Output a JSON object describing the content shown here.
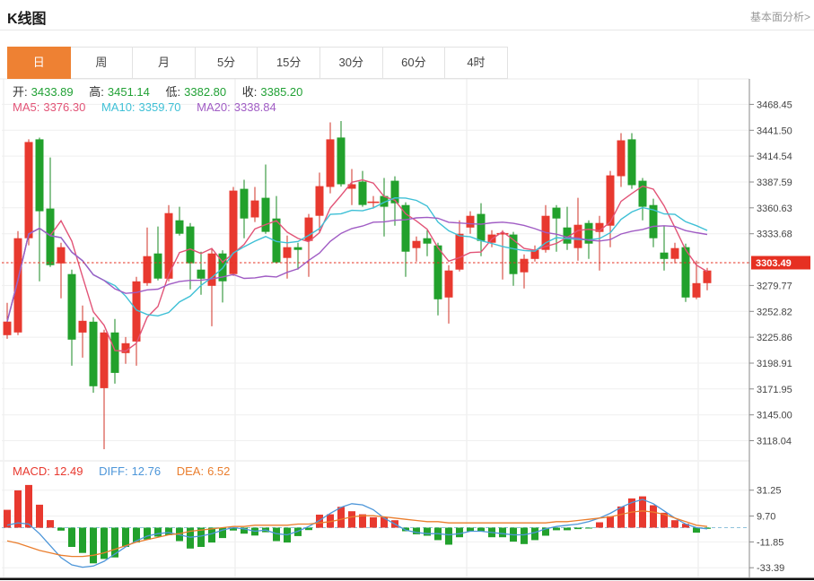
{
  "header": {
    "title": "K线图",
    "link": "基本面分析>"
  },
  "tabs": {
    "items": [
      "日",
      "周",
      "月",
      "5分",
      "15分",
      "30分",
      "60分",
      "4时"
    ],
    "active_index": 0
  },
  "ohlc": {
    "open_label": "开:",
    "open": "3433.89",
    "high_label": "高:",
    "high": "3451.14",
    "low_label": "低:",
    "low": "3382.80",
    "close_label": "收:",
    "close": "3385.20"
  },
  "ma": {
    "ma5_label": "MA5:",
    "ma5": "3376.30",
    "ma10_label": "MA10:",
    "ma10": "3359.70",
    "ma20_label": "MA20:",
    "ma20": "3338.84"
  },
  "macd_info": {
    "macd_label": "MACD:",
    "macd": "12.49",
    "diff_label": "DIFF:",
    "diff": "12.76",
    "dea_label": "DEA:",
    "dea": "6.52"
  },
  "price_axis": {
    "current_price": "3303.49"
  },
  "colors": {
    "up": "#e8392f",
    "up_wick": "#d03126",
    "down": "#22a12c",
    "down_wick": "#178a20",
    "ma5": "#e25477",
    "ma10": "#3fc0d6",
    "ma20": "#a05cc4",
    "diff": "#4d96d9",
    "dea": "#ea7e2e",
    "ohlc_value": "#21a135",
    "tab_active": "#ee8133",
    "badge": "#e63022",
    "grid": "#efefef",
    "vgrid": "#e9e9e9",
    "axis_line": "#888",
    "tick_text": "#444",
    "zero_dash": "#8fc2dc",
    "bottom_bar": "#111"
  },
  "chart_data": [
    {
      "type": "candlestick",
      "title": "K线图 日K",
      "ylim": [
        3098,
        3495
      ],
      "yticks": [
        3468.45,
        3441.5,
        3414.54,
        3387.59,
        3360.63,
        3333.68,
        3279.77,
        3252.82,
        3225.86,
        3198.91,
        3171.95,
        3145.0,
        3118.04
      ],
      "current_price": 3303.49,
      "ma_overlays": [
        {
          "name": "MA5",
          "window": 5,
          "color_key": "ma5"
        },
        {
          "name": "MA10",
          "window": 10,
          "color_key": "ma10"
        },
        {
          "name": "MA20",
          "window": 20,
          "color_key": "ma20"
        }
      ],
      "candles_format": [
        "open",
        "high",
        "low",
        "close"
      ],
      "candles": [
        [
          3228.0,
          3261.7,
          3224.2,
          3242.1
        ],
        [
          3230.8,
          3336.5,
          3228.0,
          3329.0
        ],
        [
          3329.0,
          3432.0,
          3321.6,
          3429.2
        ],
        [
          3432.0,
          3433.8,
          3284.1,
          3357.1
        ],
        [
          3359.9,
          3413.2,
          3299.1,
          3301.0
        ],
        [
          3302.8,
          3324.3,
          3266.3,
          3319.7
        ],
        [
          3291.6,
          3296.3,
          3196.2,
          3223.3
        ],
        [
          3230.8,
          3258.9,
          3204.6,
          3243.0
        ],
        [
          3242.0,
          3246.7,
          3168.1,
          3174.7
        ],
        [
          3172.8,
          3233.6,
          3109.2,
          3230.8
        ],
        [
          3230.8,
          3244.8,
          3177.5,
          3188.7
        ],
        [
          3209.3,
          3226.1,
          3198.1,
          3219.6
        ],
        [
          3221.4,
          3288.8,
          3196.2,
          3284.1
        ],
        [
          3282.2,
          3340.2,
          3279.4,
          3310.3
        ],
        [
          3313.1,
          3341.2,
          3285.0,
          3286.9
        ],
        [
          3286.9,
          3363.6,
          3284.1,
          3355.2
        ],
        [
          3347.7,
          3361.8,
          3331.8,
          3333.7
        ],
        [
          3341.2,
          3344.9,
          3275.7,
          3302.8
        ],
        [
          3296.3,
          3315.0,
          3270.1,
          3286.9
        ],
        [
          3279.4,
          3317.8,
          3237.3,
          3313.1
        ],
        [
          3313.1,
          3316.5,
          3262.0,
          3284.1
        ],
        [
          3291.6,
          3382.4,
          3289.7,
          3378.6
        ],
        [
          3380.5,
          3389.9,
          3329.0,
          3349.6
        ],
        [
          3350.6,
          3382.4,
          3345.9,
          3368.3
        ],
        [
          3371.1,
          3405.8,
          3333.7,
          3335.6
        ],
        [
          3349.6,
          3373.0,
          3302.8,
          3303.8
        ],
        [
          3308.5,
          3331.8,
          3286.9,
          3319.7
        ],
        [
          3319.7,
          3324.3,
          3296.3,
          3316.9
        ],
        [
          3326.2,
          3354.3,
          3288.8,
          3350.6
        ],
        [
          3352.4,
          3397.4,
          3335.6,
          3383.3
        ],
        [
          3382.4,
          3449.7,
          3375.8,
          3432.0
        ],
        [
          3433.89,
          3451.14,
          3382.8,
          3385.2
        ],
        [
          3380.5,
          3401.1,
          3363.6,
          3385.2
        ],
        [
          3388.0,
          3399.2,
          3361.8,
          3363.6
        ],
        [
          3366.5,
          3373.0,
          3359.9,
          3366.5
        ],
        [
          3373.0,
          3391.8,
          3330.9,
          3361.8
        ],
        [
          3388.9,
          3393.6,
          3342.1,
          3365.5
        ],
        [
          3363.6,
          3366.5,
          3288.8,
          3315.0
        ],
        [
          3318.7,
          3330.9,
          3304.7,
          3326.2
        ],
        [
          3329.0,
          3337.4,
          3310.3,
          3323.4
        ],
        [
          3321.5,
          3324.3,
          3248.6,
          3265.4
        ],
        [
          3267.3,
          3301.0,
          3240.1,
          3295.4
        ],
        [
          3296.3,
          3347.7,
          3294.4,
          3333.7
        ],
        [
          3340.2,
          3357.1,
          3333.7,
          3352.4
        ],
        [
          3354.3,
          3365.5,
          3310.3,
          3326.2
        ],
        [
          3324.3,
          3337.4,
          3319.7,
          3332.8
        ],
        [
          3333.7,
          3337.4,
          3286.0,
          3333.7
        ],
        [
          3332.8,
          3335.6,
          3279.4,
          3291.6
        ],
        [
          3293.5,
          3312.2,
          3276.6,
          3307.5
        ],
        [
          3307.5,
          3321.5,
          3304.7,
          3316.9
        ],
        [
          3316.9,
          3363.6,
          3314.1,
          3352.4
        ],
        [
          3360.9,
          3363.6,
          3315.0,
          3349.6
        ],
        [
          3340.2,
          3361.8,
          3316.9,
          3323.4
        ],
        [
          3318.7,
          3371.1,
          3305.7,
          3343.0
        ],
        [
          3344.9,
          3347.7,
          3307.5,
          3323.4
        ],
        [
          3335.6,
          3352.4,
          3295.4,
          3344.9
        ],
        [
          3342.1,
          3399.2,
          3319.7,
          3394.5
        ],
        [
          3393.6,
          3438.5,
          3382.4,
          3431.0
        ],
        [
          3432.0,
          3438.5,
          3380.5,
          3384.3
        ],
        [
          3388.9,
          3391.8,
          3347.7,
          3361.8
        ],
        [
          3363.6,
          3370.2,
          3319.7,
          3329.0
        ],
        [
          3314.1,
          3342.1,
          3295.4,
          3307.5
        ],
        [
          3307.5,
          3324.3,
          3302.8,
          3318.7
        ],
        [
          3319.7,
          3323.4,
          3262.6,
          3267.3
        ],
        [
          3267.3,
          3305.7,
          3265.4,
          3282.2
        ],
        [
          3282.2,
          3298.2,
          3274.7,
          3295.4
        ]
      ]
    },
    {
      "type": "bar",
      "title": "MACD",
      "ylim": [
        -41.5,
        55.0
      ],
      "yticks": [
        31.25,
        9.7,
        -11.85,
        -33.39
      ],
      "hist": [
        14.9,
        31.1,
        35.6,
        19.2,
        6.3,
        -2.5,
        -16.1,
        -21.1,
        -29.8,
        -26.1,
        -24.8,
        -16.1,
        -12.4,
        -9.9,
        -7.5,
        -6.2,
        -11.2,
        -17.4,
        -16.1,
        -12.4,
        -8.7,
        -2.4,
        -5.0,
        -6.6,
        -3.8,
        -11.2,
        -12.4,
        -7.0,
        -2.0,
        10.9,
        11.2,
        17.4,
        13.7,
        11.2,
        8.7,
        8.7,
        6.2,
        -3.0,
        -5.5,
        -6.7,
        -10.4,
        -14.2,
        -8.0,
        -3.0,
        -3.0,
        -8.0,
        -8.0,
        -11.7,
        -13.7,
        -10.4,
        -6.7,
        -2.2,
        -2.2,
        -1.2,
        -0.7,
        4.5,
        9.5,
        17.7,
        24.4,
        26.1,
        18.7,
        12.4,
        6.2,
        3.2,
        -4.2,
        -1.0
      ],
      "diff": [
        2,
        4,
        3,
        -5,
        -15,
        -25,
        -31,
        -33,
        -32,
        -28,
        -22,
        -16,
        -11,
        -7,
        -5,
        -4,
        -6,
        -8,
        -7,
        -5,
        -2,
        0,
        -1,
        -3,
        -2,
        -5,
        -6,
        -3,
        1,
        6,
        12,
        17,
        20,
        19,
        15,
        8,
        3,
        -2,
        -4,
        -5,
        -5,
        -6,
        -5,
        -3,
        -3,
        -4,
        -5,
        -6,
        -6,
        -4,
        -1,
        1,
        2,
        3,
        5,
        8,
        12,
        17,
        21,
        23.6,
        20,
        14,
        8,
        3,
        0,
        -1
      ],
      "dea": [
        -11,
        -13,
        -16,
        -19,
        -21,
        -23,
        -24,
        -24,
        -23,
        -21,
        -18,
        -15,
        -12,
        -10,
        -8,
        -6,
        -5,
        -3,
        -2,
        -1,
        0,
        1,
        1,
        2,
        2,
        2,
        2,
        3,
        3,
        4,
        5,
        7,
        9,
        10,
        10,
        9,
        8,
        7,
        6,
        5,
        5,
        4,
        4,
        4,
        4,
        4,
        4,
        4,
        4,
        4,
        4,
        5,
        5,
        6,
        7,
        8,
        9,
        11,
        13,
        14,
        13,
        11,
        8,
        5,
        2,
        1
      ]
    }
  ]
}
